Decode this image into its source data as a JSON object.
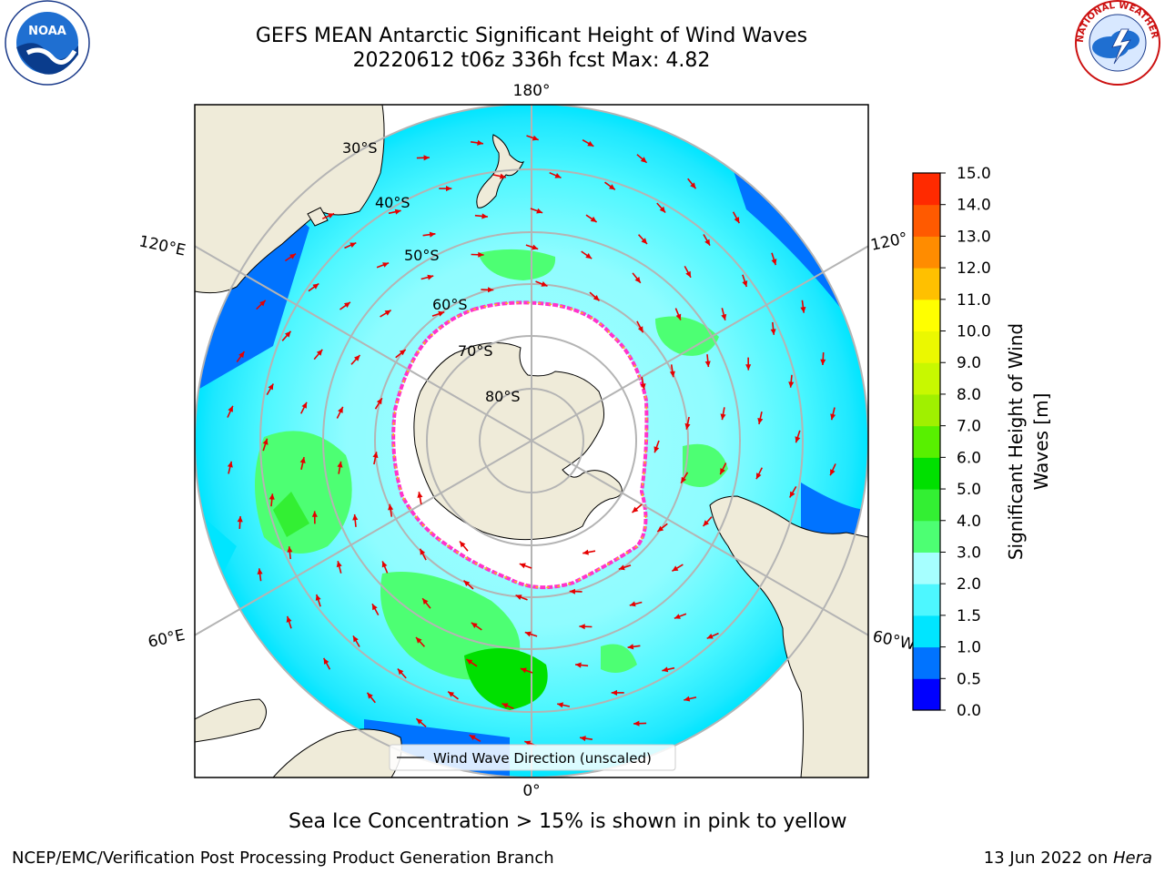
{
  "title": {
    "line1": "GEFS MEAN Antarctic Significant Height of Wind Waves",
    "line2": "20220612 t06z 336h fcst   Max: 4.82"
  },
  "map": {
    "projection": "south-polar-stereographic",
    "longitude_labels": {
      "top": "180°",
      "bottom": "0°",
      "left_upper": "120°E",
      "left_lower": "60°E",
      "right_upper": "120°",
      "right_lower": "60°W"
    },
    "latitude_labels": [
      "30°S",
      "40°S",
      "50°S",
      "60°S",
      "70°S",
      "80°S"
    ],
    "legend_label": "Wind Wave Direction (unscaled)",
    "colors": {
      "land": "#efebd9",
      "ice": "#ffffff",
      "ice_edge": "#ff33cc",
      "graticule": "#b4b4b4",
      "arrow": "#e60000"
    }
  },
  "colorbar": {
    "label": "Significant Height of Wind Waves [m]",
    "label_line1": "Significant Height of Wind",
    "label_line2": "Waves [m]",
    "ticks": [
      "0.0",
      "0.5",
      "1.0",
      "1.5",
      "2.0",
      "3.0",
      "4.0",
      "5.0",
      "6.0",
      "7.0",
      "8.0",
      "9.0",
      "10.0",
      "11.0",
      "12.0",
      "13.0",
      "14.0",
      "15.0"
    ],
    "colors": [
      "#0000ff",
      "#0073ff",
      "#00e5ff",
      "#4df7ff",
      "#a6ffff",
      "#4dff73",
      "#33ef33",
      "#00e000",
      "#58f000",
      "#a0f000",
      "#c8f800",
      "#ebf800",
      "#ffff00",
      "#ffc000",
      "#ff8c00",
      "#ff5a00",
      "#ff2a00"
    ]
  },
  "note": "Sea Ice Concentration > 15% is shown in pink to yellow",
  "footer": {
    "left": "NCEP/EMC/Verification Post Processing Product Generation Branch",
    "right_prefix": "13 Jun 2022 on ",
    "right_machine": "Hera"
  },
  "logos": {
    "noaa_text": "NOAA",
    "nws_text": "NATIONAL WEATHER SERVICE"
  }
}
